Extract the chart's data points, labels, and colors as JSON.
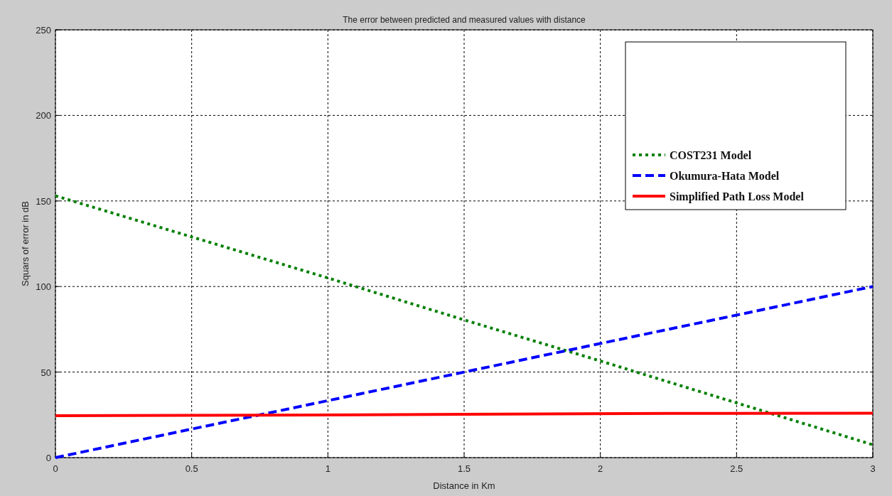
{
  "chart_data": {
    "type": "line",
    "title": "The error between predicted and measured values with distance",
    "xlabel": "Distance in Km",
    "ylabel": "Squars of error in dB",
    "xlim": [
      0,
      3
    ],
    "xticks": [
      0,
      0.5,
      1,
      1.5,
      2,
      2.5,
      3
    ],
    "ylim": [
      0,
      250
    ],
    "yticks": [
      0,
      50,
      100,
      150,
      200,
      250
    ],
    "grid": true,
    "legend": "top right",
    "series": [
      {
        "name": "COST231 Model",
        "color": "#008000",
        "line_style": "dotted",
        "x": [
          0,
          0.5,
          1,
          1.5,
          2,
          2.5,
          3
        ],
        "values": [
          153,
          129,
          105,
          80.5,
          56.5,
          32,
          7.5
        ]
      },
      {
        "name": "Okumura-Hata Model",
        "color": "#0000ff",
        "line_style": "dashed",
        "x": [
          0,
          0.5,
          1,
          1.5,
          2,
          2.5,
          3
        ],
        "values": [
          0,
          16.7,
          33.3,
          50,
          66.7,
          83.3,
          100
        ]
      },
      {
        "name": "Simplified Path Loss Model",
        "color": "#ff0000",
        "line_style": "solid",
        "x": [
          0,
          0.75,
          1.5,
          2.25,
          3
        ],
        "values": [
          24.5,
          24.8,
          25.3,
          25.8,
          26
        ]
      }
    ]
  }
}
